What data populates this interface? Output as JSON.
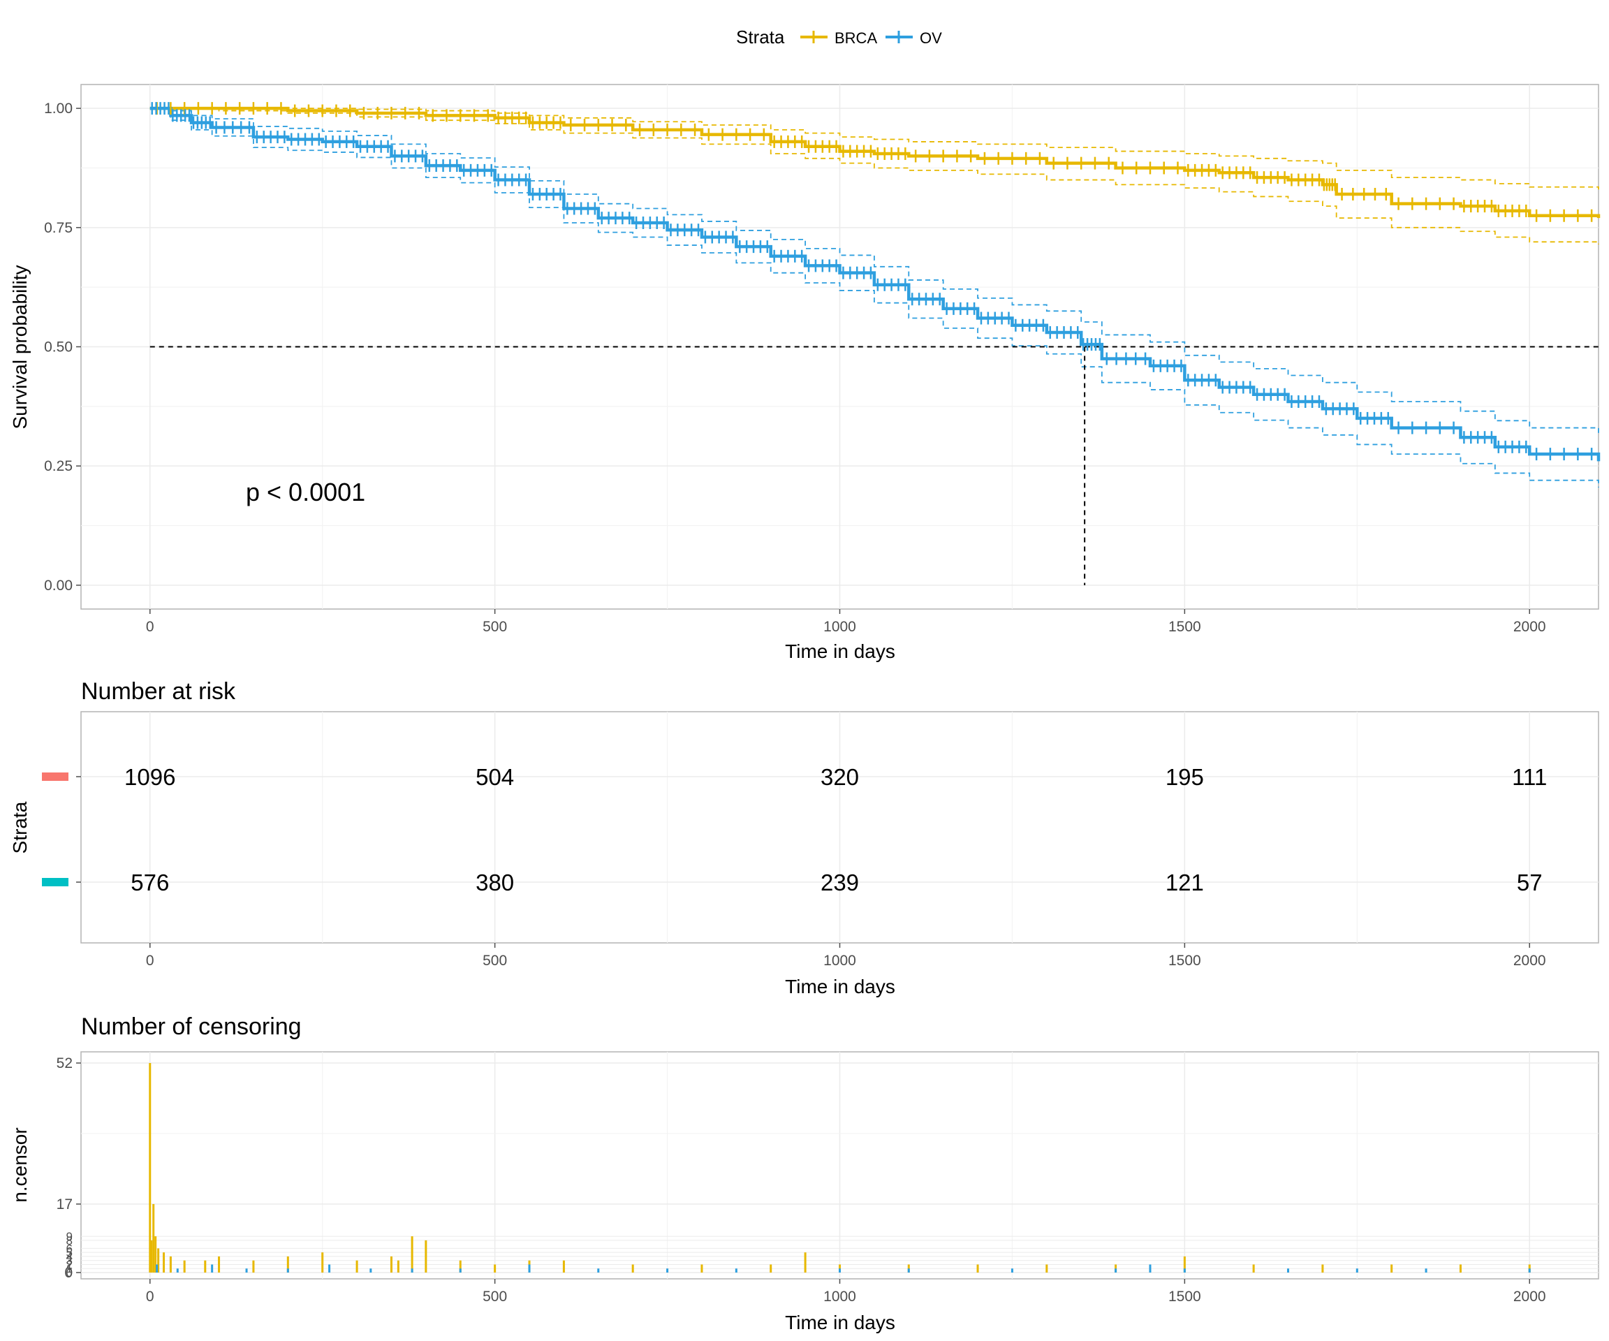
{
  "legend": {
    "title": "Strata",
    "items": [
      {
        "label": "BRCA",
        "color": "#E7B800"
      },
      {
        "label": "OV",
        "color": "#2E9FDF"
      }
    ]
  },
  "chart_data": [
    {
      "type": "line",
      "title": "",
      "xlabel": "Time in days",
      "ylabel": "Survival probability",
      "xlim": [
        -100,
        2100
      ],
      "ylim": [
        -0.05,
        1.05
      ],
      "x_ticks": [
        0,
        500,
        1000,
        1500,
        2000
      ],
      "y_ticks": [
        0.0,
        0.25,
        0.5,
        0.75,
        1.0
      ],
      "y_tick_labels": [
        "0.00",
        "0.25",
        "0.50",
        "0.75",
        "1.00"
      ],
      "annotation": "p < 0.0001",
      "median_line": {
        "y": 0.5,
        "x": 1355
      },
      "grid": true,
      "series": [
        {
          "name": "BRCA",
          "color": "#E7B800",
          "x": [
            0,
            100,
            200,
            300,
            400,
            500,
            550,
            600,
            700,
            800,
            900,
            950,
            1000,
            1050,
            1100,
            1200,
            1300,
            1400,
            1500,
            1550,
            1600,
            1650,
            1700,
            1720,
            1800,
            1900,
            1950,
            2000,
            2100
          ],
          "y": [
            1.0,
            1.0,
            0.995,
            0.99,
            0.985,
            0.98,
            0.97,
            0.965,
            0.955,
            0.945,
            0.93,
            0.92,
            0.91,
            0.905,
            0.9,
            0.895,
            0.885,
            0.875,
            0.87,
            0.865,
            0.855,
            0.85,
            0.84,
            0.82,
            0.8,
            0.795,
            0.785,
            0.775,
            0.77
          ],
          "upper": [
            1.0,
            1.0,
            1.0,
            0.998,
            0.995,
            0.99,
            0.985,
            0.98,
            0.972,
            0.965,
            0.955,
            0.948,
            0.94,
            0.935,
            0.93,
            0.925,
            0.918,
            0.91,
            0.905,
            0.9,
            0.895,
            0.89,
            0.885,
            0.87,
            0.855,
            0.85,
            0.842,
            0.835,
            0.83
          ],
          "lower": [
            1.0,
            0.995,
            0.99,
            0.982,
            0.975,
            0.968,
            0.955,
            0.948,
            0.938,
            0.925,
            0.905,
            0.895,
            0.885,
            0.875,
            0.87,
            0.862,
            0.85,
            0.84,
            0.833,
            0.825,
            0.815,
            0.805,
            0.795,
            0.77,
            0.75,
            0.742,
            0.73,
            0.72,
            0.715
          ]
        },
        {
          "name": "OV",
          "color": "#2E9FDF",
          "x": [
            0,
            30,
            60,
            90,
            150,
            200,
            250,
            300,
            350,
            400,
            450,
            500,
            550,
            600,
            650,
            700,
            750,
            800,
            850,
            900,
            950,
            1000,
            1050,
            1100,
            1150,
            1200,
            1250,
            1300,
            1350,
            1380,
            1450,
            1500,
            1550,
            1600,
            1650,
            1700,
            1750,
            1800,
            1900,
            1950,
            2000,
            2100
          ],
          "y": [
            1.0,
            0.985,
            0.97,
            0.96,
            0.94,
            0.935,
            0.93,
            0.92,
            0.9,
            0.88,
            0.87,
            0.85,
            0.82,
            0.79,
            0.77,
            0.76,
            0.745,
            0.73,
            0.71,
            0.69,
            0.67,
            0.655,
            0.63,
            0.6,
            0.58,
            0.56,
            0.545,
            0.53,
            0.505,
            0.475,
            0.46,
            0.43,
            0.415,
            0.4,
            0.385,
            0.37,
            0.35,
            0.33,
            0.31,
            0.29,
            0.275,
            0.26
          ],
          "upper": [
            1.0,
            0.995,
            0.985,
            0.978,
            0.962,
            0.958,
            0.952,
            0.943,
            0.925,
            0.905,
            0.896,
            0.877,
            0.848,
            0.82,
            0.8,
            0.79,
            0.777,
            0.763,
            0.744,
            0.725,
            0.706,
            0.692,
            0.668,
            0.64,
            0.621,
            0.602,
            0.588,
            0.575,
            0.552,
            0.525,
            0.51,
            0.482,
            0.468,
            0.454,
            0.44,
            0.425,
            0.405,
            0.385,
            0.365,
            0.345,
            0.33,
            0.315
          ],
          "lower": [
            1.0,
            0.975,
            0.955,
            0.942,
            0.918,
            0.912,
            0.908,
            0.897,
            0.875,
            0.855,
            0.844,
            0.823,
            0.792,
            0.76,
            0.74,
            0.73,
            0.713,
            0.697,
            0.676,
            0.655,
            0.634,
            0.618,
            0.592,
            0.56,
            0.539,
            0.518,
            0.502,
            0.485,
            0.458,
            0.425,
            0.41,
            0.378,
            0.362,
            0.346,
            0.33,
            0.315,
            0.295,
            0.275,
            0.255,
            0.235,
            0.22,
            0.205
          ]
        }
      ]
    },
    {
      "type": "table",
      "title": "Number at risk",
      "xlabel": "Time in days",
      "ylabel": "Strata",
      "xlim": [
        -100,
        2100
      ],
      "x_ticks": [
        0,
        500,
        1000,
        1500,
        2000
      ],
      "rows": [
        {
          "color": "#F8766D",
          "values": [
            1096,
            504,
            320,
            195,
            111
          ]
        },
        {
          "color": "#00BFC4",
          "values": [
            576,
            380,
            239,
            121,
            57
          ]
        }
      ],
      "grid": true
    },
    {
      "type": "bar",
      "title": "Number of censoring",
      "xlabel": "Time in days",
      "ylabel": "n.censor",
      "xlim": [
        -100,
        2100
      ],
      "ylim": [
        0,
        54
      ],
      "x_ticks": [
        0,
        500,
        1000,
        1500,
        2000
      ],
      "y_ticks": [
        0,
        17,
        52
      ],
      "minor_tick_labels": [
        "0",
        "1",
        "2",
        "3",
        "4",
        "5",
        "6",
        "8",
        "9"
      ],
      "minor_tick_values": [
        0,
        1,
        2,
        3,
        4,
        5,
        6,
        8,
        9
      ],
      "grid": true,
      "series": [
        {
          "name": "BRCA",
          "color": "#E7B800",
          "x": [
            0,
            2,
            5,
            8,
            12,
            20,
            30,
            50,
            80,
            100,
            150,
            200,
            250,
            300,
            350,
            360,
            380,
            400,
            450,
            500,
            550,
            600,
            700,
            800,
            900,
            950,
            1000,
            1100,
            1200,
            1300,
            1400,
            1500,
            1600,
            1700,
            1800,
            1900,
            2000
          ],
          "values": [
            52,
            8,
            17,
            9,
            6,
            5,
            4,
            3,
            3,
            4,
            3,
            4,
            5,
            3,
            4,
            3,
            9,
            8,
            3,
            2,
            3,
            3,
            2,
            2,
            2,
            5,
            2,
            2,
            2,
            2,
            2,
            4,
            2,
            2,
            2,
            2,
            2
          ]
        },
        {
          "name": "OV",
          "color": "#2E9FDF",
          "x": [
            10,
            40,
            90,
            140,
            200,
            260,
            320,
            380,
            450,
            550,
            650,
            750,
            850,
            1000,
            1100,
            1250,
            1400,
            1450,
            1500,
            1650,
            1750,
            1850,
            2000
          ],
          "values": [
            2,
            1,
            2,
            1,
            1,
            2,
            1,
            1,
            1,
            2,
            1,
            1,
            1,
            1,
            1,
            1,
            1,
            2,
            1,
            1,
            1,
            1,
            1
          ]
        }
      ]
    }
  ]
}
